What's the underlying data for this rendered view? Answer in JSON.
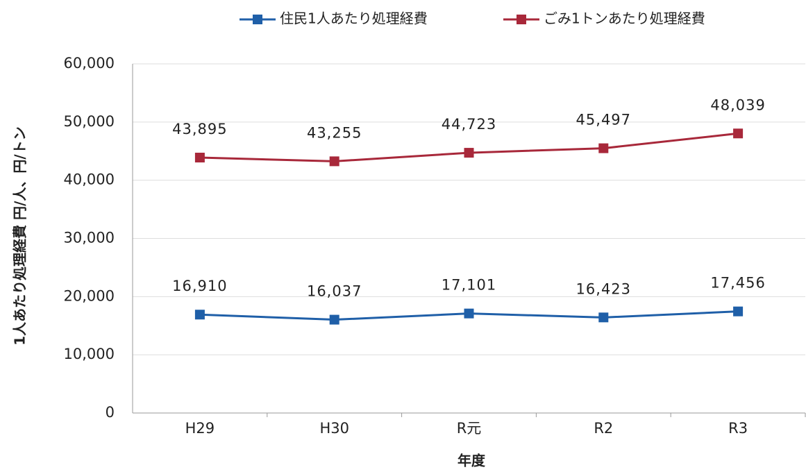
{
  "chart_data": {
    "type": "line",
    "x_label": "年度",
    "y_label": "1人あたり処理経費 円/人、円/トン",
    "categories": [
      "H29",
      "H30",
      "R元",
      "R2",
      "R3"
    ],
    "series": [
      {
        "name": "住民1人あたり処理経費",
        "color": "#1f5fa8",
        "values": [
          16910,
          16037,
          17101,
          16423,
          17456
        ],
        "value_labels": [
          "16,910",
          "16,037",
          "17,101",
          "16,423",
          "17,456"
        ]
      },
      {
        "name": "ごみ1トンあたり処理経費",
        "color": "#a8283a",
        "values": [
          43895,
          43255,
          44723,
          45497,
          48039
        ],
        "value_labels": [
          "43,895",
          "43,255",
          "44,723",
          "45,497",
          "48,039"
        ]
      }
    ],
    "ylim": [
      0,
      60000
    ],
    "yticks": [
      0,
      {
        "value": 10000,
        "label": "10,000"
      },
      {
        "value": 20000,
        "label": "20,000"
      },
      {
        "value": 30000,
        "label": "30,000"
      },
      {
        "value": 40000,
        "label": "40,000"
      },
      {
        "value": 50000,
        "label": "50,000"
      },
      {
        "value": 60000,
        "label": "60,000"
      }
    ],
    "grid": true,
    "legend": "top"
  }
}
